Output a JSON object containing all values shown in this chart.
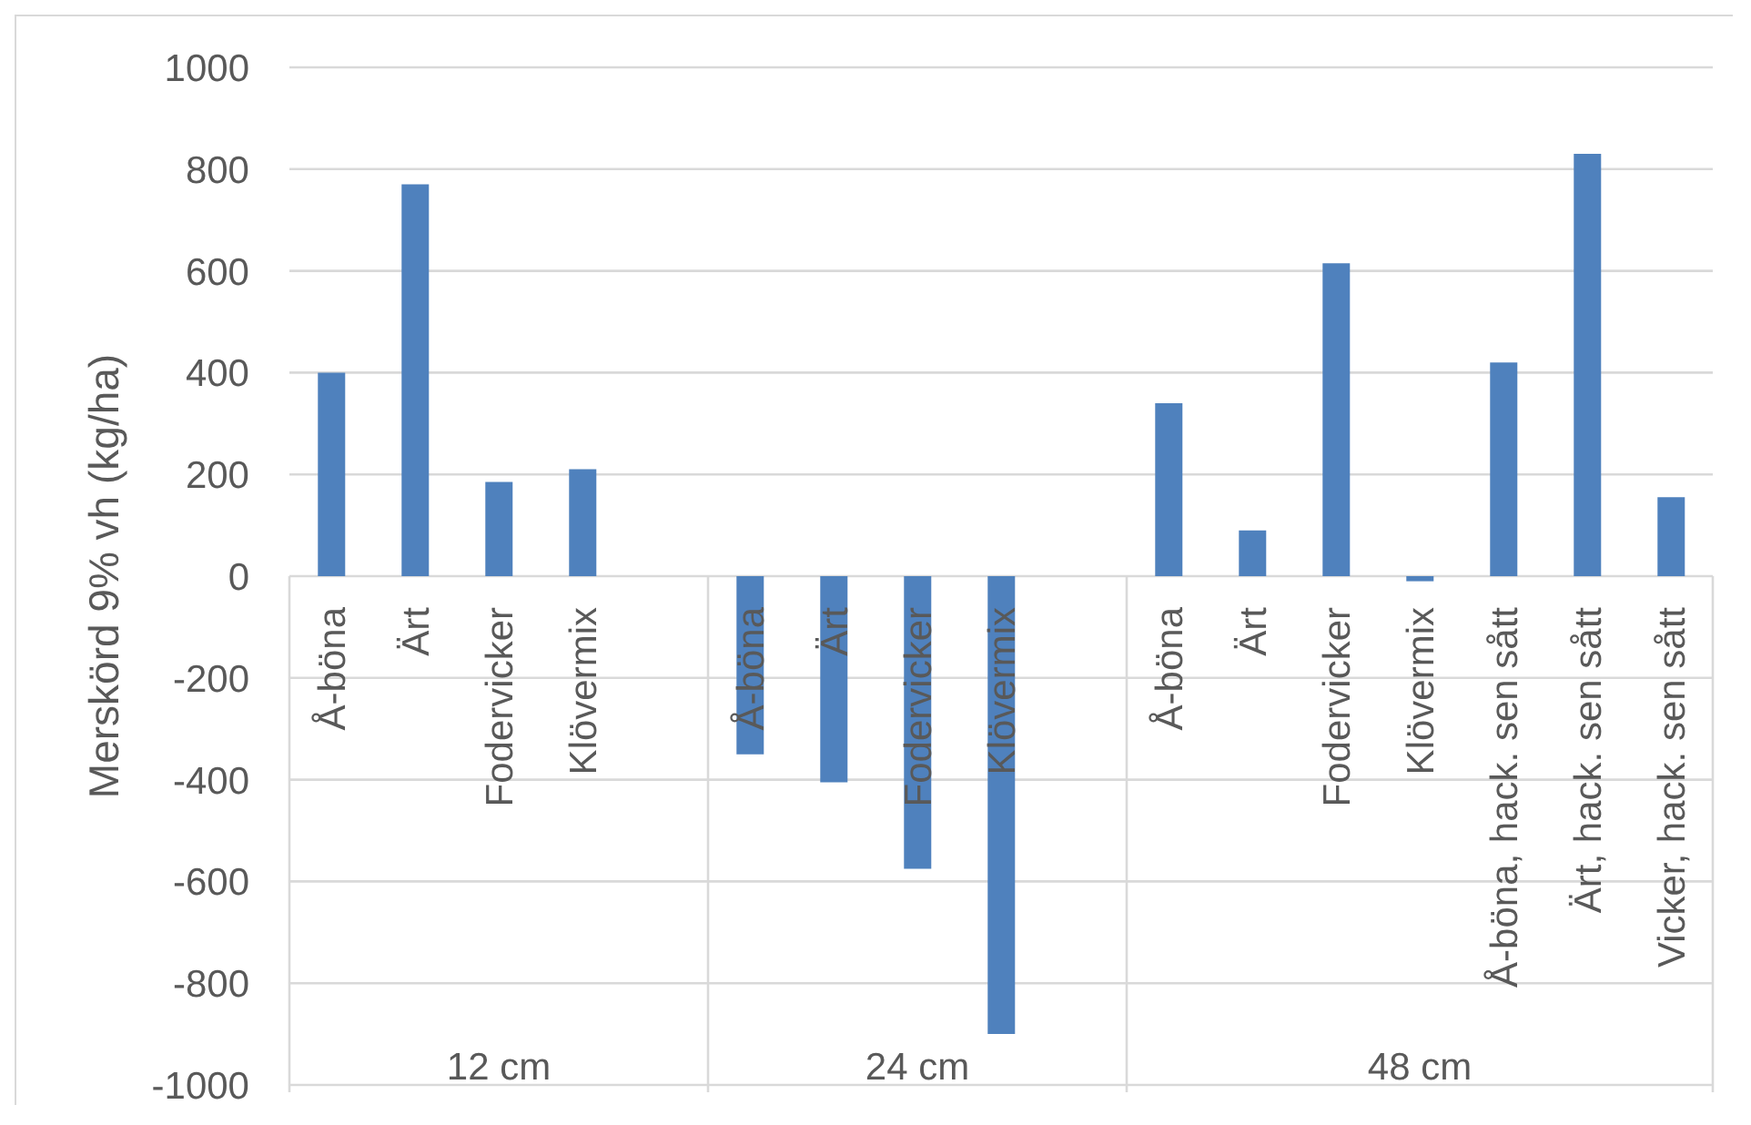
{
  "chart_data": {
    "type": "bar",
    "ylabel": "Merskörd 9% vh (kg/ha)",
    "categories": [
      "Å-böna",
      "Ärt",
      "Fodervicker",
      "Klövermix",
      null,
      "Å-böna",
      "Ärt",
      "Fodervicker",
      "Klövermix",
      null,
      "Å-böna",
      "Ärt",
      "Fodervicker",
      "Klövermix",
      "Å-böna, hack. sen sått",
      "Ärt, hack. sen sått",
      "Vicker, hack. sen sått"
    ],
    "values": [
      400,
      770,
      185,
      210,
      null,
      -350,
      -405,
      -575,
      -900,
      null,
      340,
      90,
      615,
      -10,
      420,
      830,
      155
    ],
    "color": "#4f81bd",
    "ylim": [
      -1000,
      1000
    ],
    "yticks": [
      -1000,
      -800,
      -600,
      -400,
      -200,
      0,
      200,
      400,
      600,
      800,
      1000
    ],
    "grid": "y",
    "annotations": [
      "12 cm",
      "24 cm",
      "48 cm"
    ]
  }
}
